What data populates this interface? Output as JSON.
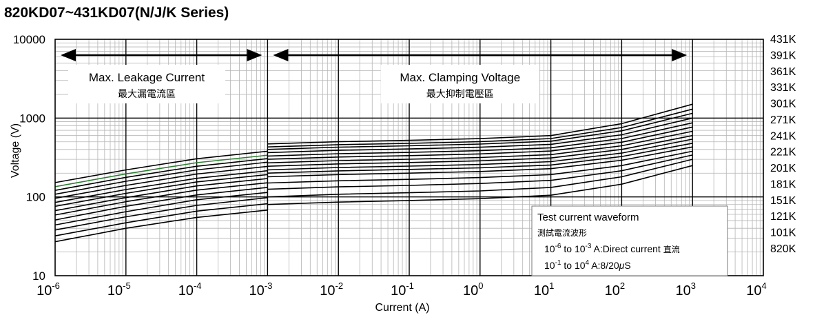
{
  "chart_data": {
    "type": "line",
    "title": "820KD07~431KD07(N/J/K Series)",
    "xlabel": "Current (A)",
    "ylabel": "Voltage (V)",
    "x_scale": "log",
    "y_scale": "log",
    "xlim": [
      1e-06,
      10000
    ],
    "ylim": [
      10,
      10000
    ],
    "grid": true,
    "x_ticks": [
      {
        "base": "10",
        "exp": "-6"
      },
      {
        "base": "10",
        "exp": "-5"
      },
      {
        "base": "10",
        "exp": "-4"
      },
      {
        "base": "10",
        "exp": "-3"
      },
      {
        "base": "10",
        "exp": "-2"
      },
      {
        "base": "10",
        "exp": "-1"
      },
      {
        "base": "10",
        "exp": "0"
      },
      {
        "base": "10",
        "exp": "1"
      },
      {
        "base": "10",
        "exp": "2"
      },
      {
        "base": "10",
        "exp": "3"
      },
      {
        "base": "10",
        "exp": "4"
      }
    ],
    "y_ticks": [
      "10",
      "100",
      "1000",
      "10000"
    ],
    "right_labels": [
      "431K",
      "391K",
      "361K",
      "331K",
      "301K",
      "271K",
      "241K",
      "221K",
      "201K",
      "181K",
      "151K",
      "121K",
      "101K",
      "820K"
    ],
    "regions": [
      {
        "label": "Max. Leakage Current",
        "label_cn": "最大漏電流區",
        "x_range": [
          1e-06,
          0.001
        ]
      },
      {
        "label": "Max. Clamping Voltage",
        "label_cn": "最大抑制電壓區",
        "x_range": [
          0.001,
          1000
        ]
      }
    ],
    "legend_box": {
      "title": "Test current waveform",
      "title_cn": "測試電流波形",
      "line1": {
        "a": "10",
        "a_exp": "-6",
        "b": " to 10",
        "b_exp": "-3",
        "c": " A:Direct current ",
        "c_cn": "直流"
      },
      "line2": {
        "a": "10",
        "a_exp": "-1",
        "b": " to 10",
        "b_exp": "4",
        "c": "  A:8/20",
        "mu": "μ",
        "d": "S"
      }
    },
    "series": [
      {
        "x": [
          1e-06,
          1e-05,
          0.0001,
          0.001
        ],
        "y": [
          27,
          40,
          55,
          68
        ]
      },
      {
        "x": [
          1e-06,
          1e-05,
          0.0001,
          0.001
        ],
        "y": [
          32,
          47,
          66,
          82
        ]
      },
      {
        "x": [
          1e-06,
          1e-05,
          0.0001,
          0.001
        ],
        "y": [
          38,
          56,
          78,
          98
        ]
      },
      {
        "x": [
          1e-06,
          1e-05,
          0.0001,
          0.001
        ],
        "y": [
          44,
          65,
          92,
          114
        ]
      },
      {
        "x": [
          1e-06,
          1e-05,
          0.0001,
          0.001
        ],
        "y": [
          51,
          76,
          106,
          132
        ]
      },
      {
        "x": [
          1e-06,
          1e-05,
          0.0001,
          0.001
        ],
        "y": [
          59,
          87,
          122,
          151
        ]
      },
      {
        "x": [
          1e-06,
          1e-05,
          0.0001,
          0.001
        ],
        "y": [
          67,
          98,
          138,
          171
        ]
      },
      {
        "x": [
          1e-06,
          1e-05,
          0.0001,
          0.001
        ],
        "y": [
          76,
          111,
          155,
          192
        ]
      },
      {
        "x": [
          1e-06,
          1e-05,
          0.0001,
          0.001
        ],
        "y": [
          85,
          124,
          172,
          215
        ]
      },
      {
        "x": [
          1e-06,
          1e-05,
          0.0001,
          0.001
        ],
        "y": [
          96,
          140,
          195,
          244
        ]
      },
      {
        "x": [
          1e-06,
          1e-05,
          0.0001,
          0.001
        ],
        "y": [
          108,
          158,
          220,
          276
        ]
      },
      {
        "x": [
          1e-06,
          1e-05,
          0.0001,
          0.001
        ],
        "y": [
          121,
          177,
          245,
          306
        ]
      },
      {
        "x": [
          1e-06,
          1e-05,
          0.0001,
          0.001
        ],
        "y": [
          135,
          196,
          272,
          338
        ],
        "color": "#2e7d32"
      },
      {
        "x": [
          1e-06,
          1e-05,
          0.0001,
          0.001
        ],
        "y": [
          152,
          220,
          305,
          380
        ]
      },
      {
        "x": [
          0.001,
          0.01,
          0.1,
          1,
          10,
          100,
          1000
        ],
        "y": [
          80,
          86,
          90,
          95,
          105,
          145,
          250
        ]
      },
      {
        "x": [
          0.001,
          0.01,
          0.1,
          1,
          10,
          100,
          1000
        ],
        "y": [
          100,
          108,
          113,
          119,
          132,
          180,
          300
        ]
      },
      {
        "x": [
          0.001,
          0.01,
          0.1,
          1,
          10,
          100,
          1000
        ],
        "y": [
          125,
          134,
          140,
          148,
          162,
          215,
          340
        ]
      },
      {
        "x": [
          0.001,
          0.01,
          0.1,
          1,
          10,
          100,
          1000
        ],
        "y": [
          150,
          160,
          167,
          176,
          192,
          250,
          380
        ]
      },
      {
        "x": [
          0.001,
          0.01,
          0.1,
          1,
          10,
          100,
          1000
        ],
        "y": [
          180,
          192,
          200,
          210,
          228,
          292,
          430
        ]
      },
      {
        "x": [
          0.001,
          0.01,
          0.1,
          1,
          10,
          100,
          1000
        ],
        "y": [
          200,
          214,
          223,
          234,
          254,
          325,
          480
        ]
      },
      {
        "x": [
          0.001,
          0.01,
          0.1,
          1,
          10,
          100,
          1000
        ],
        "y": [
          220,
          236,
          246,
          258,
          280,
          360,
          540
        ]
      },
      {
        "x": [
          0.001,
          0.01,
          0.1,
          1,
          10,
          100,
          1000
        ],
        "y": [
          245,
          262,
          273,
          287,
          312,
          400,
          600
        ]
      },
      {
        "x": [
          0.001,
          0.01,
          0.1,
          1,
          10,
          100,
          1000
        ],
        "y": [
          270,
          289,
          301,
          316,
          344,
          445,
          680
        ]
      },
      {
        "x": [
          0.001,
          0.01,
          0.1,
          1,
          10,
          100,
          1000
        ],
        "y": [
          300,
          321,
          334,
          351,
          382,
          495,
          770
        ]
      },
      {
        "x": [
          0.001,
          0.01,
          0.1,
          1,
          10,
          100,
          1000
        ],
        "y": [
          330,
          353,
          367,
          386,
          420,
          550,
          870
        ]
      },
      {
        "x": [
          0.001,
          0.01,
          0.1,
          1,
          10,
          100,
          1000
        ],
        "y": [
          365,
          390,
          406,
          427,
          465,
          615,
          1000
        ]
      },
      {
        "x": [
          0.001,
          0.01,
          0.1,
          1,
          10,
          100,
          1000
        ],
        "y": [
          400,
          428,
          445,
          468,
          510,
          690,
          1150
        ]
      },
      {
        "x": [
          0.001,
          0.01,
          0.1,
          1,
          10,
          100,
          1000
        ],
        "y": [
          430,
          460,
          478,
          503,
          550,
          760,
          1300
        ]
      },
      {
        "x": [
          0.001,
          0.01,
          0.1,
          1,
          10,
          100,
          1000
        ],
        "y": [
          470,
          502,
          522,
          549,
          600,
          850,
          1500
        ]
      }
    ]
  }
}
